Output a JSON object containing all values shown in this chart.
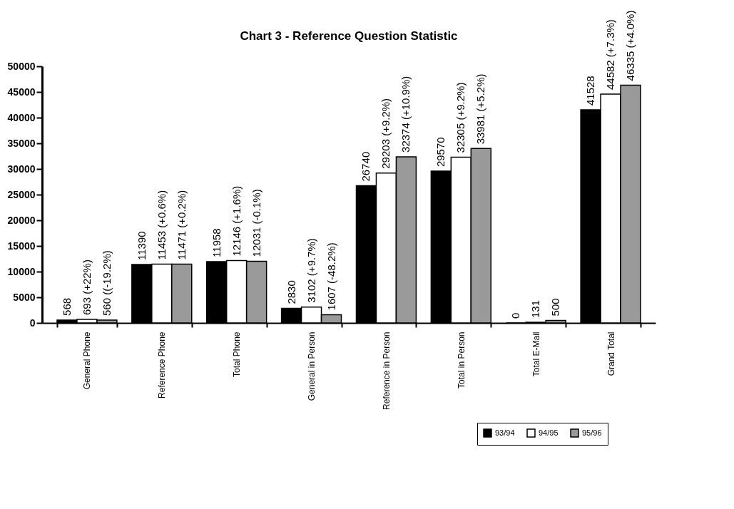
{
  "chart_data": {
    "type": "bar",
    "title": "Chart 3 - Reference Question Statistic",
    "categories": [
      "General Phone",
      "Reference Phone",
      "Total Phone",
      "General in Person",
      "Reference in Person",
      "Total in Person",
      "Total E-Mail",
      "Grand Total"
    ],
    "series": [
      {
        "name": "93/94",
        "color": "#000000",
        "values": [
          568,
          11390,
          11958,
          2830,
          26740,
          29570,
          0,
          41528
        ],
        "value_labels": [
          "568",
          "11390",
          "11958",
          "2830",
          "26740",
          "29570",
          "0",
          "41528"
        ]
      },
      {
        "name": "94/95",
        "color": "#ffffff",
        "values": [
          693,
          11453,
          12146,
          3102,
          29203,
          32305,
          131,
          44582
        ],
        "value_labels": [
          "693  (+22%)",
          "11453  (+0.6%)",
          "12146  (+1.6%)",
          "3102  (+9.7%)",
          "29203  (+9.2%)",
          "32305  (+9.2%)",
          "131",
          "44582  (+7.3%)"
        ]
      },
      {
        "name": "95/96",
        "color": "#9a9a9a",
        "values": [
          560,
          11471,
          12031,
          1607,
          32374,
          33981,
          500,
          46335
        ],
        "value_labels": [
          "560  ((-19.2%)",
          "11471  (+0.2%)",
          "12031  (-0.1%)",
          "1607  (-48.2%)",
          "32374  (+10.9%)",
          "33981  (+5.2%)",
          "500",
          "46335  (+4.0%)"
        ]
      }
    ],
    "ylim": [
      0,
      50000
    ],
    "yticks": [
      0,
      5000,
      10000,
      15000,
      20000,
      25000,
      30000,
      35000,
      40000,
      45000,
      50000
    ],
    "grid": false,
    "legend": "bottom right"
  }
}
